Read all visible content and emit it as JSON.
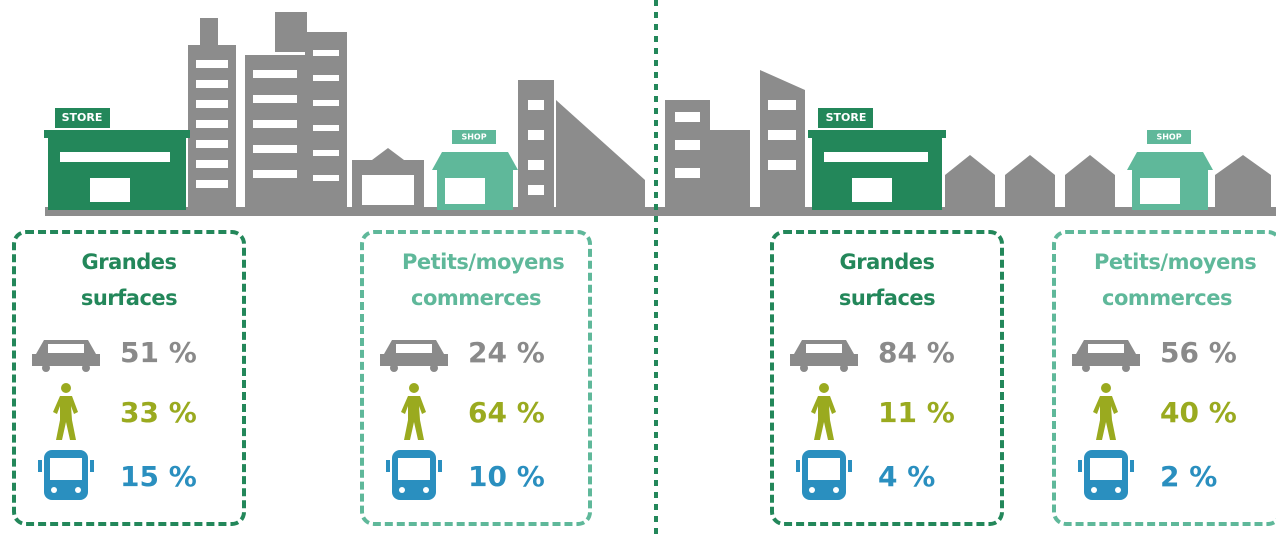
{
  "signs": {
    "store": "STORE",
    "shop": "SHOP"
  },
  "panels": [
    {
      "title": "Grandes surfaces",
      "color": "#23875a",
      "rows": [
        "51 %",
        "33 %",
        "15 %"
      ]
    },
    {
      "title": "Petits/moyens commerces",
      "color": "#5fb89a",
      "rows": [
        "24 %",
        "64 %",
        "10 %"
      ]
    },
    {
      "title": "Grandes surfaces",
      "color": "#23875a",
      "rows": [
        "84 %",
        "11 %",
        "4 %"
      ]
    },
    {
      "title": "Petits/moyens commerces",
      "color": "#5fb89a",
      "rows": [
        "56 %",
        "40 %",
        "2 %"
      ]
    }
  ]
}
